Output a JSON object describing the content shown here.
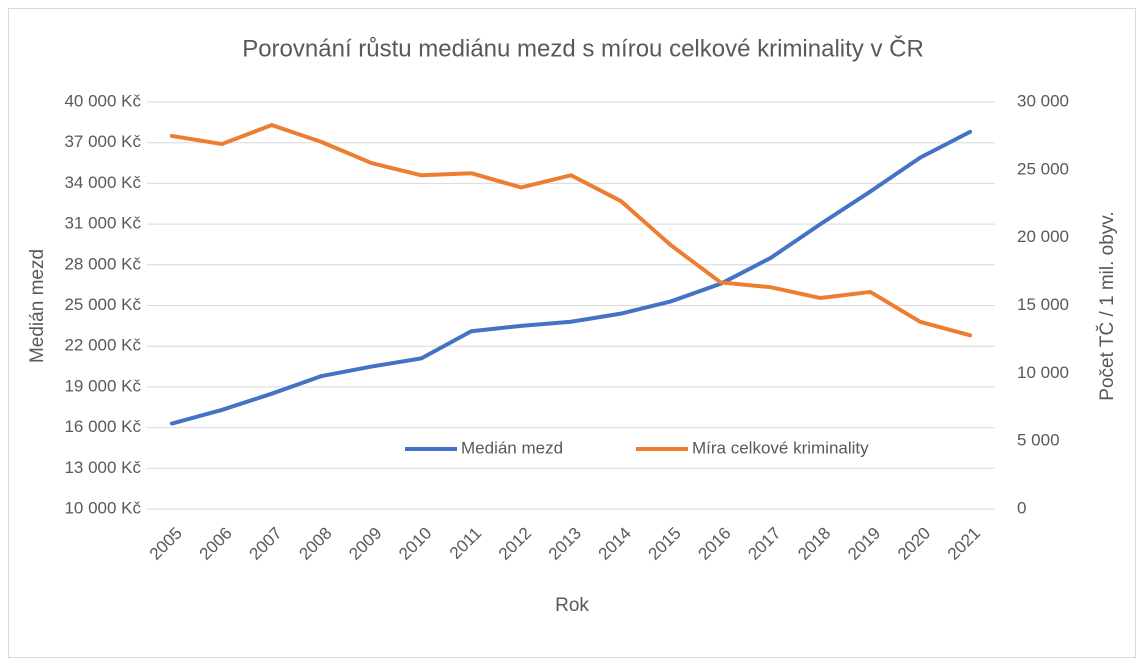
{
  "chart_data": {
    "type": "line",
    "title": "Porovnání růstu mediánu mezd s mírou celkové kriminality v ČR",
    "xlabel": "Rok",
    "ylabel": "Medián mezd",
    "y2label": "Počet TČ / 1 mil. obyv.",
    "categories": [
      "2005",
      "2006",
      "2007",
      "2008",
      "2009",
      "2010",
      "2011",
      "2012",
      "2013",
      "2014",
      "2015",
      "2016",
      "2017",
      "2018",
      "2019",
      "2020",
      "2021"
    ],
    "series": [
      {
        "name": "Medián mezd",
        "color": "#4472c4",
        "values": [
          16300,
          17300,
          18500,
          19800,
          20500,
          21100,
          23100,
          23500,
          23800,
          24400,
          25300,
          26600,
          28500,
          31000,
          33400,
          35900,
          37800
        ]
      },
      {
        "name": "Míra celkové kriminality",
        "color": "#ed7d31",
        "axis": "y2",
        "values": [
          27500,
          26900,
          28300,
          27050,
          25500,
          24600,
          24750,
          23700,
          24600,
          22700,
          19450,
          16700,
          16350,
          15550,
          16000,
          13800,
          12800
        ]
      }
    ],
    "ylim": [
      10000,
      40000
    ],
    "yticks": [
      {
        "value": 10000,
        "label": "10 000 Kč"
      },
      {
        "value": 13000,
        "label": "13 000 Kč"
      },
      {
        "value": 16000,
        "label": "16 000 Kč"
      },
      {
        "value": 19000,
        "label": "19 000 Kč"
      },
      {
        "value": 22000,
        "label": "22 000 Kč"
      },
      {
        "value": 25000,
        "label": "25 000 Kč"
      },
      {
        "value": 28000,
        "label": "28 000 Kč"
      },
      {
        "value": 31000,
        "label": "31 000 Kč"
      },
      {
        "value": 34000,
        "label": "34 000 Kč"
      },
      {
        "value": 37000,
        "label": "37 000 Kč"
      },
      {
        "value": 40000,
        "label": "40 000 Kč"
      }
    ],
    "y2lim": [
      0,
      30000
    ],
    "y2ticks": [
      0,
      {
        "value": 5000,
        "label": "5 000"
      },
      {
        "value": 10000,
        "label": "10 000"
      },
      {
        "value": 15000,
        "label": "15 000"
      },
      {
        "value": 20000,
        "label": "20 000"
      },
      {
        "value": 25000,
        "label": "25 000"
      },
      {
        "value": 30000,
        "label": "30 000"
      }
    ],
    "grid": true
  }
}
